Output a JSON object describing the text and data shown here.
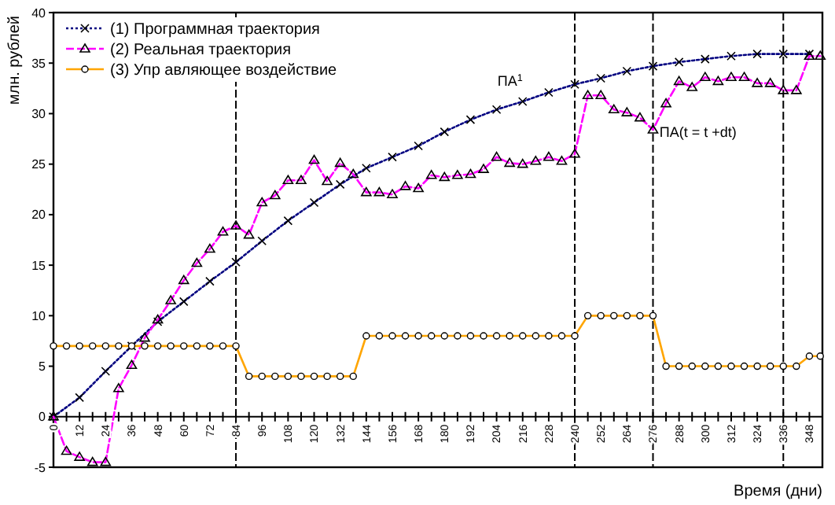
{
  "chart_data": {
    "type": "line",
    "xlabel": "Время (дни)",
    "ylabel": "млн. рублей",
    "xlim": [
      0,
      354
    ],
    "ylim": [
      -5,
      40
    ],
    "xticks": [
      0,
      {
        "value": 6,
        "label": null
      },
      12,
      {
        "value": 18,
        "label": null
      },
      24,
      {
        "value": 30,
        "label": null
      },
      36,
      {
        "value": 42,
        "label": null
      },
      48,
      {
        "value": 54,
        "label": null
      },
      60,
      {
        "value": 66,
        "label": null
      },
      72,
      {
        "value": 78,
        "label": null
      },
      84,
      {
        "value": 90,
        "label": null
      },
      96,
      {
        "value": 102,
        "label": null
      },
      108,
      {
        "value": 114,
        "label": null
      },
      120,
      {
        "value": 126,
        "label": null
      },
      132,
      {
        "value": 138,
        "label": null
      },
      144,
      {
        "value": 150,
        "label": null
      },
      156,
      {
        "value": 162,
        "label": null
      },
      168,
      {
        "value": 174,
        "label": null
      },
      180,
      {
        "value": 186,
        "label": null
      },
      192,
      {
        "value": 198,
        "label": null
      },
      204,
      {
        "value": 210,
        "label": null
      },
      216,
      {
        "value": 222,
        "label": null
      },
      228,
      {
        "value": 234,
        "label": null
      },
      240,
      {
        "value": 246,
        "label": null
      },
      252,
      {
        "value": 258,
        "label": null
      },
      264,
      {
        "value": 270,
        "label": null
      },
      276,
      {
        "value": 282,
        "label": null
      },
      288,
      {
        "value": 294,
        "label": null
      },
      300,
      {
        "value": 306,
        "label": null
      },
      312,
      {
        "value": 318,
        "label": null
      },
      324,
      {
        "value": 330,
        "label": null
      },
      336,
      {
        "value": 342,
        "label": null
      },
      348
    ],
    "yticks": [
      -5,
      0,
      5,
      10,
      15,
      20,
      25,
      30,
      35,
      40
    ],
    "grid": false,
    "legend": "top left",
    "series": [
      {
        "name": "(1)  Программная траектория",
        "color": "#000080",
        "marker": "cross",
        "line_style": "dotted",
        "x": [
          0,
          12,
          24,
          36,
          48,
          60,
          72,
          84,
          96,
          108,
          120,
          132,
          144,
          156,
          168,
          180,
          192,
          204,
          216,
          228,
          240,
          252,
          264,
          276,
          288,
          300,
          312,
          324,
          336,
          348
        ],
        "values": [
          0,
          1.9,
          4.5,
          7,
          9.4,
          11.4,
          13.4,
          15.3,
          17.4,
          19.4,
          21.2,
          23,
          24.6,
          25.7,
          26.8,
          28.2,
          29.4,
          30.4,
          31.2,
          32.1,
          32.9,
          33.5,
          34.2,
          34.7,
          35.1,
          35.4,
          35.7,
          35.9,
          35.9,
          35.9
        ]
      },
      {
        "name": "(2)  Реальная траектория",
        "color": "#ff00ff",
        "marker": "triangle",
        "line_style": "dashed",
        "x": [
          0,
          6,
          12,
          18,
          24,
          30,
          36,
          42,
          48,
          54,
          60,
          66,
          72,
          78,
          84,
          90,
          96,
          102,
          108,
          114,
          120,
          126,
          132,
          138,
          144,
          150,
          156,
          162,
          168,
          174,
          180,
          186,
          192,
          198,
          204,
          210,
          216,
          222,
          228,
          234,
          240,
          246,
          252,
          258,
          264,
          270,
          276,
          282,
          288,
          294,
          300,
          306,
          312,
          318,
          324,
          330,
          336,
          342,
          348,
          353
        ],
        "values": [
          0,
          -3.4,
          -4,
          -4.5,
          -4.5,
          2.8,
          5.1,
          7.8,
          9.6,
          11.5,
          13.5,
          15.2,
          16.6,
          18.3,
          18.9,
          18,
          21.2,
          21.9,
          23.4,
          23.4,
          25.4,
          23.3,
          25.1,
          24,
          22.2,
          22.2,
          22,
          22.8,
          22.6,
          23.9,
          23.7,
          23.9,
          24,
          24.5,
          25.7,
          25.1,
          25,
          25.3,
          25.7,
          25.3,
          26,
          31.8,
          31.8,
          30.4,
          30.1,
          29.6,
          28.4,
          31,
          33.2,
          32.6,
          33.6,
          33.2,
          33.6,
          33.6,
          33,
          33,
          32.3,
          32.3,
          35.7,
          35.7
        ]
      },
      {
        "name": "(3)  Упр авляющее воздействие",
        "color": "#ffa500",
        "marker": "circle",
        "line_style": "solid",
        "x": [
          0,
          6,
          12,
          18,
          24,
          30,
          36,
          42,
          48,
          54,
          60,
          66,
          72,
          78,
          84,
          90,
          96,
          102,
          108,
          114,
          120,
          126,
          132,
          138,
          144,
          150,
          156,
          162,
          168,
          174,
          180,
          186,
          192,
          198,
          204,
          210,
          216,
          222,
          228,
          234,
          240,
          246,
          252,
          258,
          264,
          270,
          276,
          282,
          288,
          294,
          300,
          306,
          312,
          318,
          324,
          330,
          336,
          342,
          348,
          353
        ],
        "values": [
          7,
          7,
          7,
          7,
          7,
          7,
          7,
          7,
          7,
          7,
          7,
          7,
          7,
          7,
          7,
          4,
          4,
          4,
          4,
          4,
          4,
          4,
          4,
          4,
          8,
          8,
          8,
          8,
          8,
          8,
          8,
          8,
          8,
          8,
          8,
          8,
          8,
          8,
          8,
          8,
          8,
          10,
          10,
          10,
          10,
          10,
          10,
          5,
          5,
          5,
          5,
          5,
          5,
          5,
          5,
          5,
          5,
          5,
          6,
          6
        ]
      }
    ],
    "ref_lines": [
      {
        "axis": "x",
        "value": 84,
        "line_style": "dashed",
        "color": "#000000"
      },
      {
        "axis": "x",
        "value": 240,
        "line_style": "dashed",
        "color": "#000000"
      },
      {
        "axis": "x",
        "value": 276,
        "line_style": "dashed",
        "color": "#000000"
      },
      {
        "axis": "x",
        "value": 336,
        "line_style": "dashed",
        "color": "#000000"
      }
    ],
    "annotations": [
      {
        "text": "ПА$^{1}$",
        "x": 216,
        "y": 31.2
      },
      {
        "text": "ПА(t = t +dt)",
        "x": 279,
        "y": 27.7
      }
    ]
  }
}
